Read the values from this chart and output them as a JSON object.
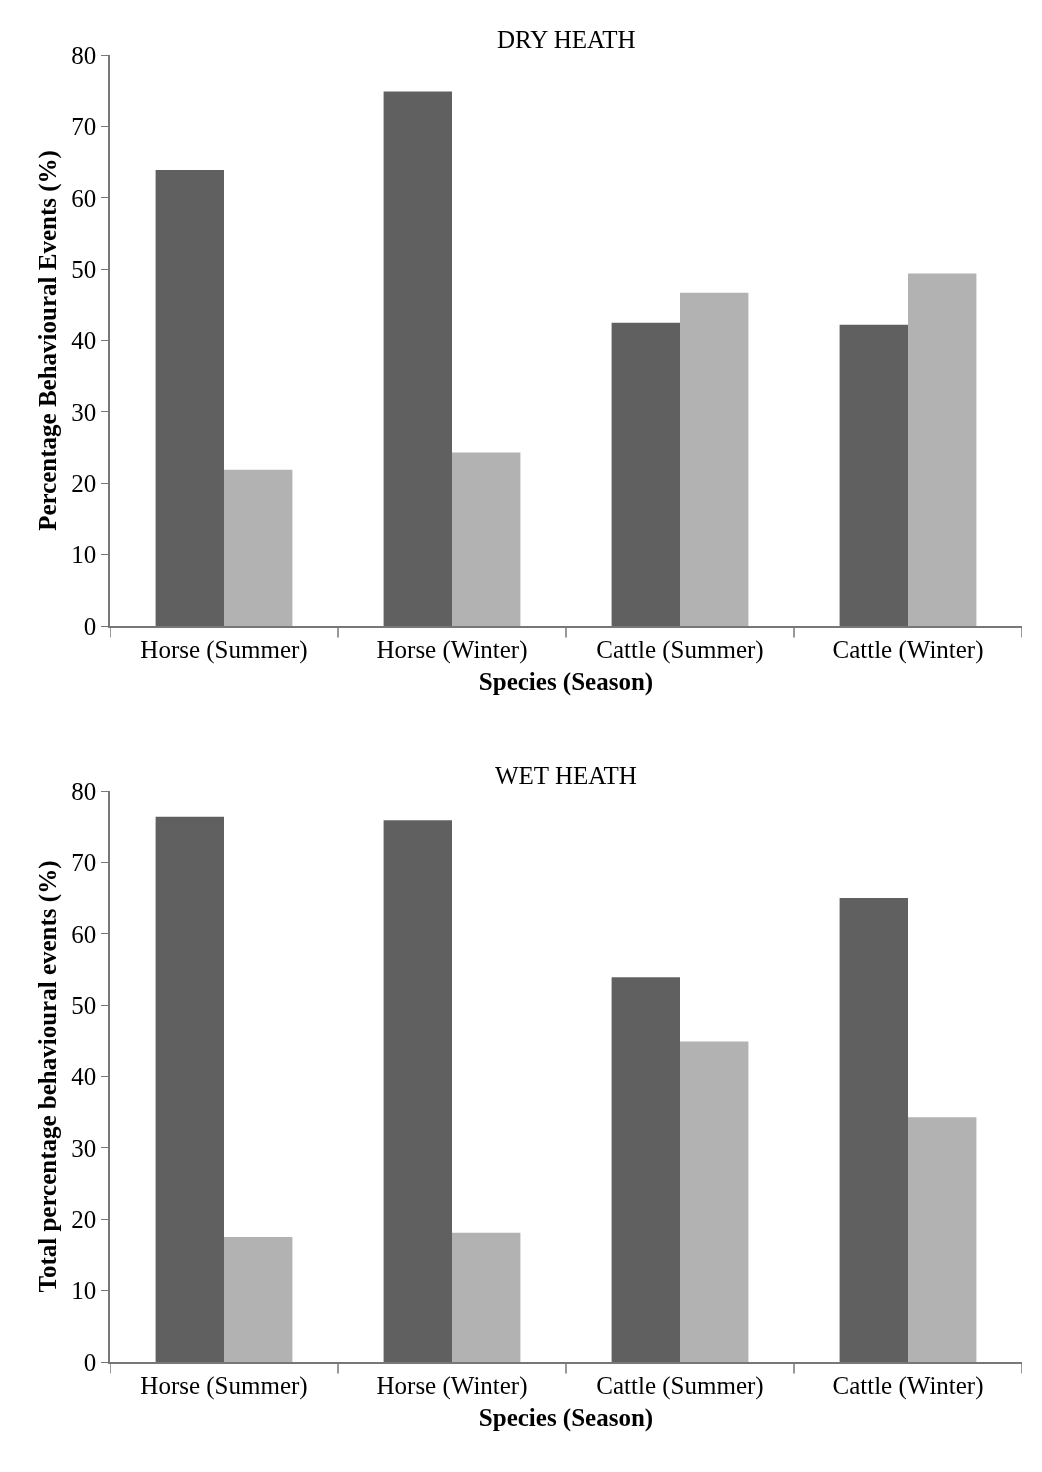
{
  "chart_data": [
    {
      "type": "bar",
      "title": "DRY HEATH",
      "xlabel": "Species (Season)",
      "ylabel": "Percentage Behavioural Events (%)",
      "categories": [
        "Horse (Summer)",
        "Horse (Winter)",
        "Cattle (Summer)",
        "Cattle (Winter)"
      ],
      "series": [
        {
          "color": "#606060",
          "values": [
            63.9,
            74.9,
            42.5,
            42.2
          ]
        },
        {
          "color": "#b2b2b2",
          "values": [
            21.9,
            24.3,
            46.7,
            49.4
          ]
        }
      ],
      "ylim": [
        0,
        80
      ],
      "yticks": [
        0,
        10,
        20,
        30,
        40,
        50,
        60,
        70,
        80
      ]
    },
    {
      "type": "bar",
      "title": "WET HEATH",
      "xlabel": "Species (Season)",
      "ylabel": "Total percentage behavioural events (%)",
      "categories": [
        "Horse (Summer)",
        "Horse (Winter)",
        "Cattle (Summer)",
        "Cattle (Winter)"
      ],
      "series": [
        {
          "color": "#606060",
          "values": [
            76.4,
            75.9,
            53.9,
            65.0
          ]
        },
        {
          "color": "#b2b2b2",
          "values": [
            17.5,
            18.1,
            44.9,
            34.3
          ]
        }
      ],
      "ylim": [
        0,
        80
      ],
      "yticks": [
        0,
        10,
        20,
        30,
        40,
        50,
        60,
        70,
        80
      ]
    }
  ]
}
